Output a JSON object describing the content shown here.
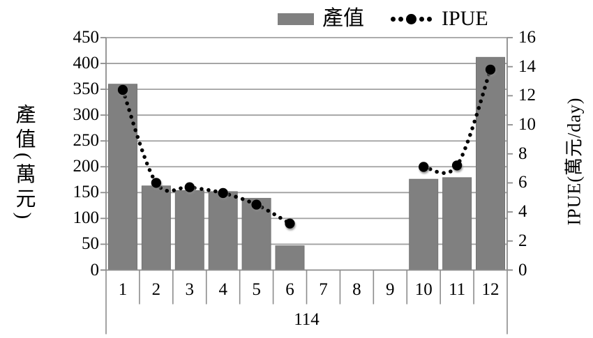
{
  "chart_data": {
    "type": "combo-bar-line",
    "categories": [
      "1",
      "2",
      "3",
      "4",
      "5",
      "6",
      "7",
      "8",
      "9",
      "10",
      "11",
      "12"
    ],
    "year_label": "114",
    "series": [
      {
        "name": "產值",
        "type": "bar",
        "axis": "left",
        "values": [
          360,
          163,
          154,
          152,
          139,
          47,
          null,
          null,
          null,
          176,
          179,
          412
        ]
      },
      {
        "name": "IPUE",
        "type": "dotted-line",
        "axis": "right",
        "values": [
          12.4,
          6.0,
          5.7,
          5.3,
          4.5,
          3.2,
          null,
          null,
          null,
          7.1,
          7.2,
          13.8
        ]
      }
    ],
    "left_axis": {
      "label": "產值(萬元)",
      "min": 0,
      "max": 450,
      "step": 50,
      "ticks": [
        "450",
        "400",
        "350",
        "300",
        "250",
        "200",
        "150",
        "100",
        "50",
        "0"
      ]
    },
    "right_axis": {
      "label": "IPUE(萬元/day)",
      "min": 0,
      "max": 16,
      "step": 2,
      "ticks": [
        "16",
        "14",
        "12",
        "10",
        "8",
        "6",
        "4",
        "2",
        "0"
      ]
    },
    "legend": [
      {
        "label": "產值",
        "swatch": "bar"
      },
      {
        "label": "IPUE",
        "swatch": "dotted-line"
      }
    ],
    "legend_position": "top-center",
    "grid": "horizontal",
    "colors": {
      "bar": "#808080",
      "line": "#000000",
      "gridline": "#a0a0a0",
      "axis_line": "#8c8c8c",
      "text": "#000000",
      "background": "#ffffff"
    }
  }
}
